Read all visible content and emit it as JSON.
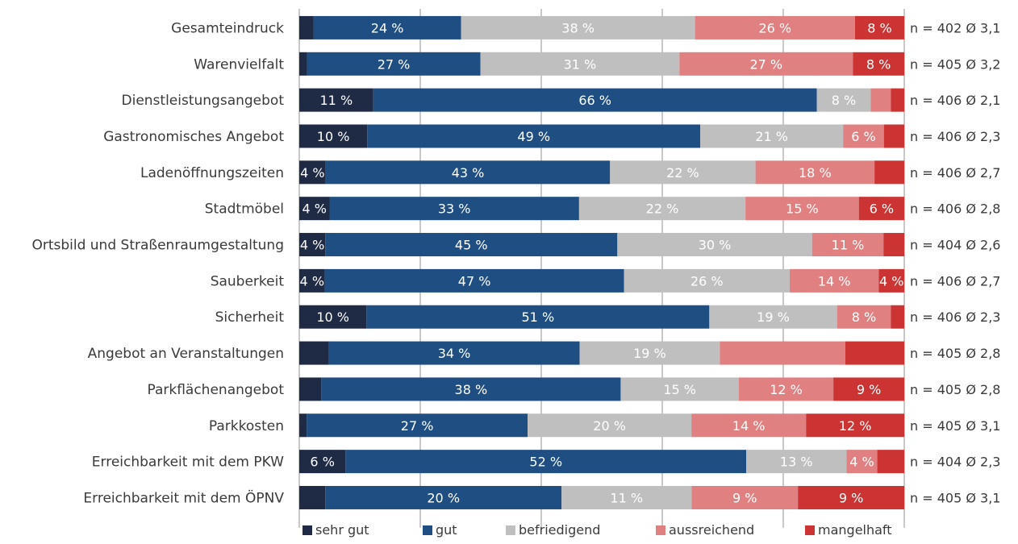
{
  "chart_data": {
    "type": "bar",
    "orientation": "horizontal",
    "stacked": true,
    "normalized": true,
    "grid": true,
    "legend_position": "bottom",
    "categories": [
      "Gesamteindruck",
      "Warenvielfalt",
      "Dienstleistungsangebot",
      "Gastronomisches Angebot",
      "Ladenöffnungszeiten",
      "Stadtmöbel",
      "Ortsbild und Straßenraumgestaltung",
      "Sauberkeit",
      "Sicherheit",
      "Angebot an Veranstaltungen",
      "Parkflächenangebot",
      "Parkkosten",
      "Erreichbarkeit mit dem PKW",
      "Erreichbarkeit mit dem ÖPNV"
    ],
    "series": [
      {
        "name": "sehr gut",
        "color": "#1f2a44",
        "values": [
          2.3,
          1.2,
          11,
          10,
          4,
          4,
          4,
          4,
          10,
          4,
          2.8,
          0.9,
          6,
          2.2
        ],
        "labels": [
          "",
          "",
          "11 %",
          "10 %",
          "4 %",
          "4 %",
          "4 %",
          "4 %",
          "10 %",
          "",
          "",
          "",
          "6 %",
          ""
        ]
      },
      {
        "name": "gut",
        "color": "#1f4e82",
        "values": [
          24,
          27,
          66,
          49,
          43,
          33,
          45,
          47,
          51,
          34,
          38,
          27,
          52,
          20
        ],
        "labels": [
          "24 %",
          "27 %",
          "66 %",
          "49 %",
          "43 %",
          "33 %",
          "45 %",
          "47 %",
          "51 %",
          "34 %",
          "38 %",
          "27 %",
          "52 %",
          "20 %"
        ]
      },
      {
        "name": "befriedigend",
        "color": "#bfbfbf",
        "values": [
          38,
          31,
          8,
          21,
          22,
          22,
          30,
          26,
          19,
          19,
          15,
          20,
          13,
          11
        ],
        "labels": [
          "38 %",
          "31 %",
          "8 %",
          "21 %",
          "22 %",
          "22 %",
          "30 %",
          "26 %",
          "19 %",
          "19 %",
          "15 %",
          "20 %",
          "13 %",
          "11 %"
        ]
      },
      {
        "name": "aussreichend",
        "color": "#e08080",
        "values": [
          26,
          27,
          3,
          6,
          18,
          15,
          11,
          14,
          8,
          17,
          12,
          14,
          4,
          9
        ],
        "labels": [
          "26 %",
          "27 %",
          "",
          "6 %",
          "18 %",
          "15 %",
          "11 %",
          "14 %",
          "8 %",
          "",
          "12 %",
          "14 %",
          "4 %",
          "9 %"
        ]
      },
      {
        "name": "mangelhaft",
        "color": "#cc3333",
        "values": [
          8,
          8,
          2,
          3,
          4.5,
          6,
          3.2,
          4,
          2,
          8,
          9,
          12,
          3.5,
          9
        ],
        "labels": [
          "8 %",
          "8 %",
          "",
          "",
          "",
          "6 %",
          "",
          "4 %",
          "",
          "",
          "9 %",
          "12 %",
          "",
          "9 %"
        ]
      }
    ],
    "stats": [
      "n = 402 Ø 3,1",
      "n = 405 Ø 3,2",
      "n = 406 Ø 2,1",
      "n = 406 Ø 2,3",
      "n = 406 Ø 2,7",
      "n = 406 Ø 2,8",
      "n = 404 Ø 2,6",
      "n = 406 Ø 2,7",
      "n = 406 Ø 2,3",
      "n = 405 Ø 2,8",
      "n = 405 Ø 2,8",
      "n = 405  Ø 3,1",
      "n = 404 Ø 2,3",
      "n = 405 Ø 3,1"
    ]
  }
}
